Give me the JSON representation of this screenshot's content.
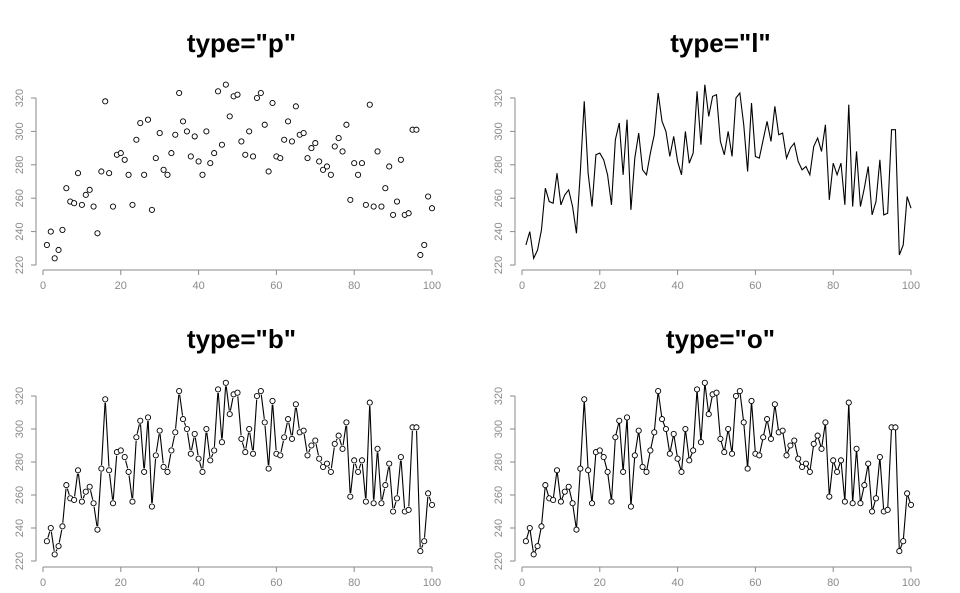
{
  "chart_data": [
    {
      "type": "scatter",
      "title": "type=\"p\"",
      "plot_type": "p",
      "xlim": [
        0,
        100
      ],
      "ylim": [
        220,
        330
      ],
      "x_ticks": [
        0,
        20,
        40,
        60,
        80,
        100
      ],
      "y_ticks": [
        220,
        240,
        260,
        280,
        300,
        320
      ],
      "xlabel": "",
      "ylabel": ""
    },
    {
      "type": "line",
      "title": "type=\"l\"",
      "plot_type": "l",
      "xlim": [
        0,
        100
      ],
      "ylim": [
        220,
        330
      ],
      "x_ticks": [
        0,
        20,
        40,
        60,
        80,
        100
      ],
      "y_ticks": [
        220,
        240,
        260,
        280,
        300,
        320
      ],
      "xlabel": "",
      "ylabel": ""
    },
    {
      "type": "line",
      "title": "type=\"b\"",
      "plot_type": "b",
      "xlim": [
        0,
        100
      ],
      "ylim": [
        220,
        330
      ],
      "x_ticks": [
        0,
        20,
        40,
        60,
        80,
        100
      ],
      "y_ticks": [
        220,
        240,
        260,
        280,
        300,
        320
      ],
      "xlabel": "",
      "ylabel": ""
    },
    {
      "type": "line",
      "title": "type=\"o\"",
      "plot_type": "o",
      "xlim": [
        0,
        100
      ],
      "ylim": [
        220,
        330
      ],
      "x_ticks": [
        0,
        20,
        40,
        60,
        80,
        100
      ],
      "y_ticks": [
        220,
        240,
        260,
        280,
        300,
        320
      ],
      "xlabel": "",
      "ylabel": ""
    }
  ],
  "series": {
    "x": [
      1,
      2,
      3,
      4,
      5,
      6,
      7,
      8,
      9,
      10,
      11,
      12,
      13,
      14,
      15,
      16,
      17,
      18,
      19,
      20,
      21,
      22,
      23,
      24,
      25,
      26,
      27,
      28,
      29,
      30,
      31,
      32,
      33,
      34,
      35,
      36,
      37,
      38,
      39,
      40,
      41,
      42,
      43,
      44,
      45,
      46,
      47,
      48,
      49,
      50,
      51,
      52,
      53,
      54,
      55,
      56,
      57,
      58,
      59,
      60,
      61,
      62,
      63,
      64,
      65,
      66,
      67,
      68,
      69,
      70,
      71,
      72,
      73,
      74,
      75,
      76,
      77,
      78,
      79,
      80,
      81,
      82,
      83,
      84,
      85,
      86,
      87,
      88,
      89,
      90,
      91,
      92,
      93,
      94,
      95,
      96,
      97,
      98,
      99,
      100
    ],
    "y": [
      232,
      240,
      224,
      229,
      241,
      266,
      258,
      257,
      275,
      256,
      262,
      265,
      255,
      239,
      276,
      318,
      275,
      255,
      286,
      287,
      283,
      274,
      256,
      295,
      305,
      274,
      307,
      253,
      284,
      299,
      277,
      274,
      287,
      298,
      323,
      306,
      300,
      285,
      297,
      282,
      274,
      300,
      281,
      287,
      324,
      292,
      328,
      309,
      321,
      322,
      294,
      286,
      300,
      285,
      320,
      323,
      304,
      276,
      317,
      285,
      284,
      295,
      306,
      294,
      315,
      298,
      299,
      284,
      290,
      293,
      282,
      277,
      279,
      274,
      291,
      296,
      288,
      304,
      259,
      281,
      274,
      281,
      256,
      316,
      255,
      288,
      255,
      266,
      279,
      250,
      258,
      283,
      250,
      251,
      301,
      301,
      226,
      232,
      261,
      254
    ]
  }
}
